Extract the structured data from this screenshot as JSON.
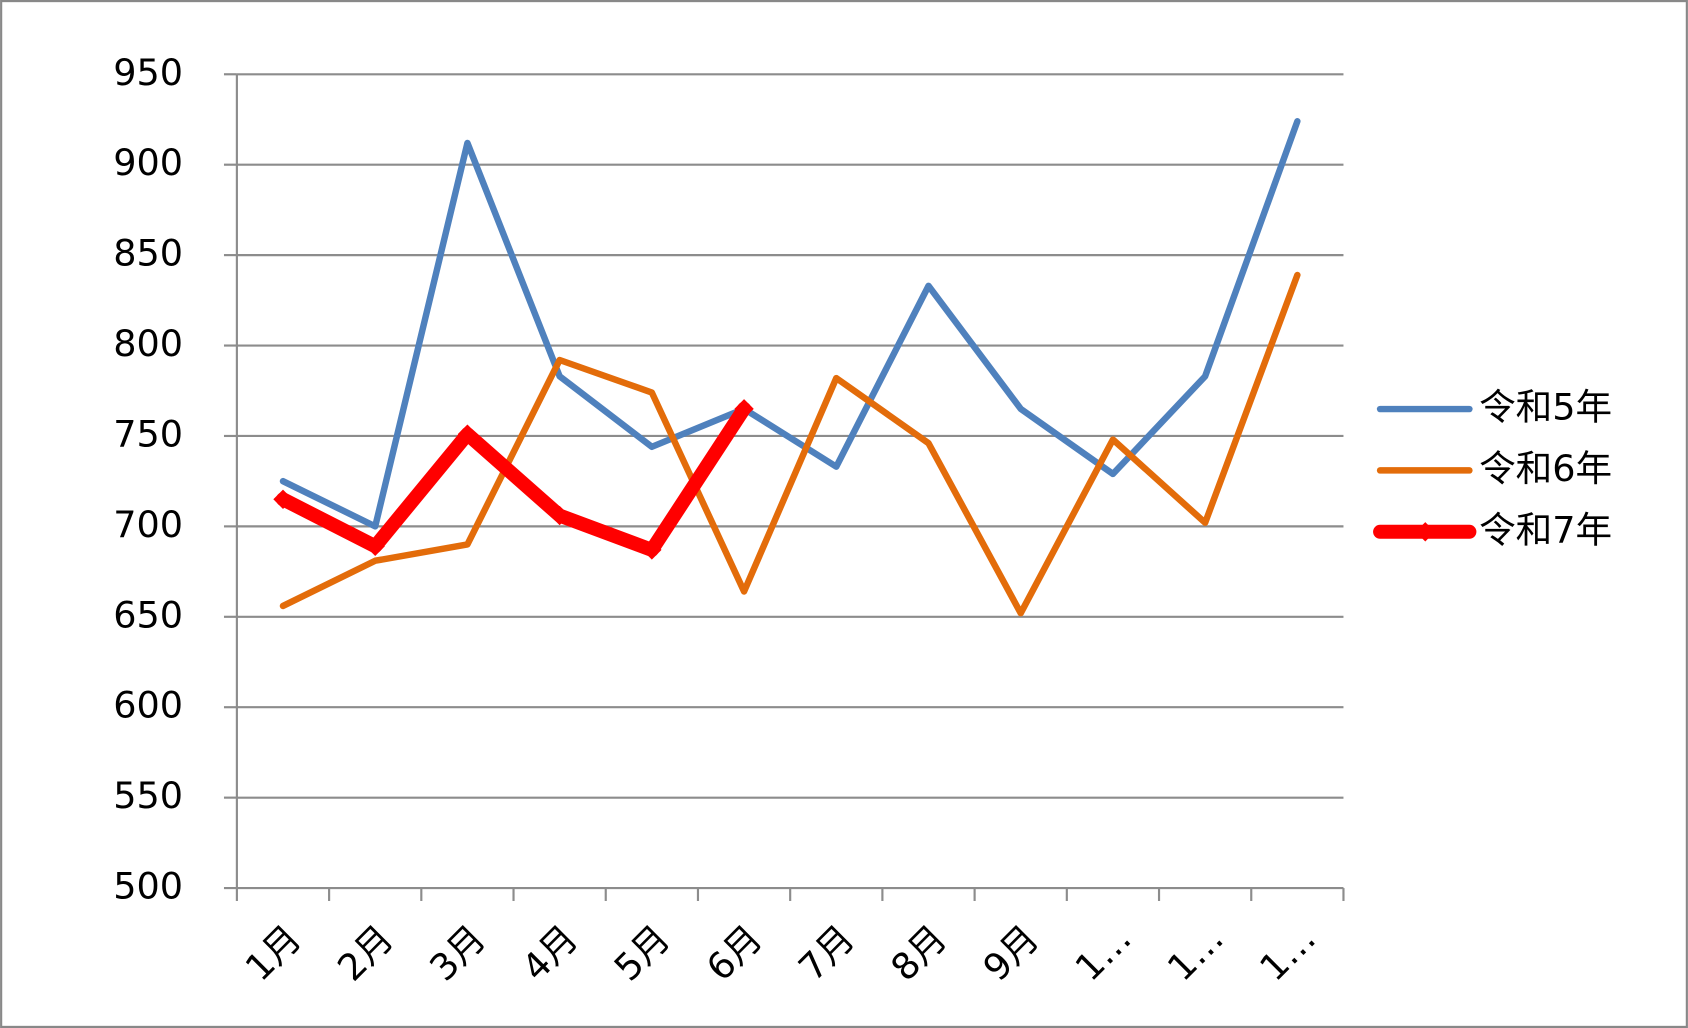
{
  "chart_data": {
    "type": "line",
    "categories": [
      "1月",
      "2月",
      "3月",
      "4月",
      "5月",
      "6月",
      "7月",
      "8月",
      "9月",
      "1…",
      "1…",
      "1…"
    ],
    "series": [
      {
        "name": "令和5年",
        "color": "#4f81bd",
        "values": [
          725,
          700,
          912,
          783,
          744,
          765,
          733,
          833,
          765,
          729,
          783,
          924
        ]
      },
      {
        "name": "令和6年",
        "color": "#e36c0a",
        "values": [
          656,
          681,
          690,
          792,
          774,
          664,
          782,
          746,
          652,
          748,
          702,
          839
        ]
      },
      {
        "name": "令和7年",
        "color": "#ff0000",
        "values": [
          715,
          689,
          751,
          706,
          687,
          765,
          null,
          null,
          null,
          null,
          null,
          null
        ]
      }
    ],
    "ylim": [
      500,
      950
    ],
    "yticks": [
      500,
      550,
      600,
      650,
      700,
      750,
      800,
      850,
      900,
      950
    ],
    "grid": true,
    "legend": "right"
  }
}
